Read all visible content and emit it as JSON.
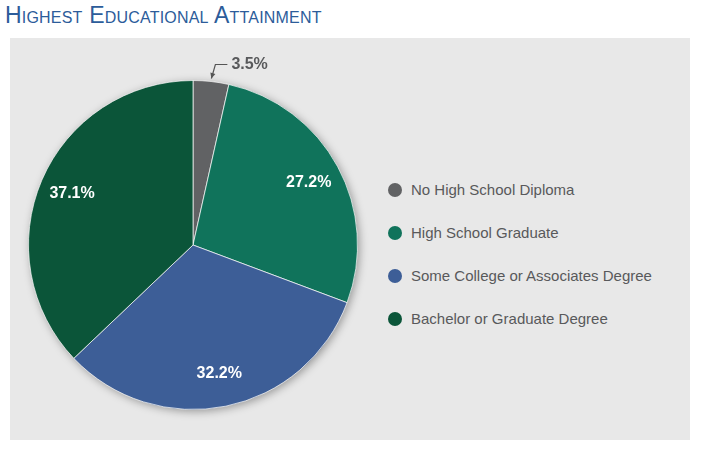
{
  "chart_data": {
    "type": "pie",
    "title": "Highest Educational Attainment",
    "categories": [
      "No High School Diploma",
      "High School Graduate",
      "Some College or Associates Degree",
      "Bachelor or Graduate Degree"
    ],
    "values": [
      3.5,
      27.2,
      32.2,
      37.1
    ],
    "value_labels": [
      "3.5%",
      "27.2%",
      "32.2%",
      "37.1%"
    ],
    "colors": [
      "#616264",
      "#10735b",
      "#3d5e97",
      "#0b5539"
    ],
    "data_labels": true,
    "legend": "right"
  }
}
